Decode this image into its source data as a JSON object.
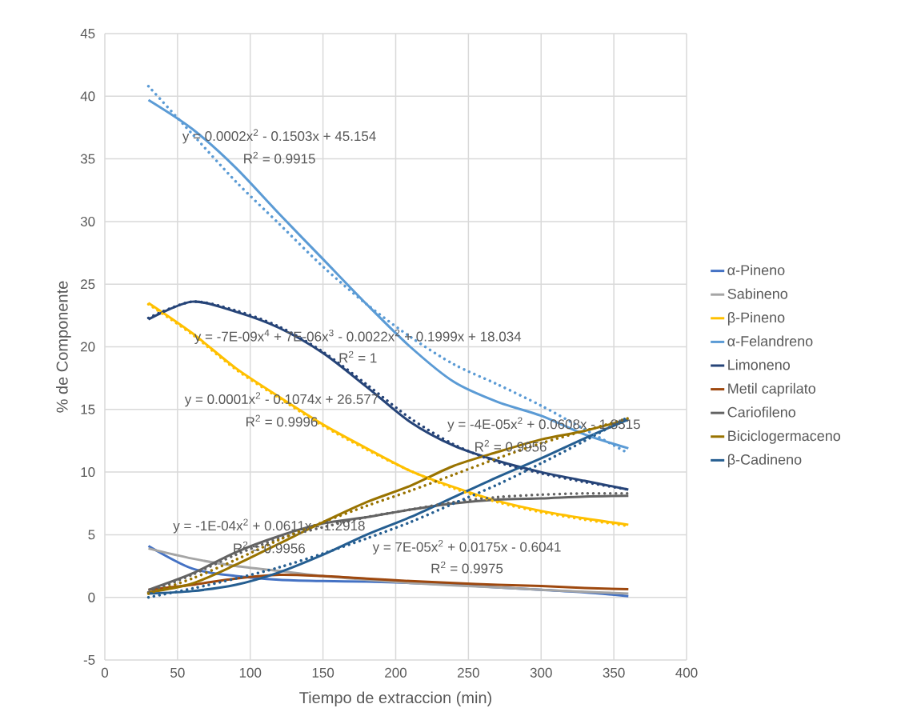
{
  "chart_data": {
    "type": "line",
    "xlabel": "Tiempo de extraccion (min)",
    "ylabel": "% de Componente",
    "x": [
      30,
      60,
      90,
      120,
      150,
      180,
      210,
      240,
      270,
      300,
      330,
      360
    ],
    "xlim": [
      0,
      400
    ],
    "xticks": [
      0,
      50,
      100,
      150,
      200,
      250,
      300,
      350,
      400
    ],
    "ylim": [
      -5,
      45
    ],
    "yticks": [
      -5,
      0,
      5,
      10,
      15,
      20,
      25,
      30,
      35,
      40,
      45
    ],
    "grid": true,
    "legend": "right",
    "marker": "none",
    "line_style": "solid",
    "series": [
      {
        "name": "α-Pineno",
        "color": "#4472c4",
        "values": [
          4.1,
          2.3,
          1.7,
          1.4,
          1.3,
          1.25,
          1.15,
          1.0,
          0.8,
          0.6,
          0.4,
          0.1
        ]
      },
      {
        "name": "Sabineno",
        "color": "#a5a5a5",
        "values": [
          3.9,
          3.1,
          2.5,
          2.1,
          1.7,
          1.4,
          1.15,
          0.95,
          0.8,
          0.6,
          0.45,
          0.3
        ]
      },
      {
        "name": "β-Pineno",
        "color": "#ffc000",
        "values": [
          23.5,
          21.1,
          18.3,
          16.0,
          13.8,
          11.9,
          10.1,
          8.8,
          7.7,
          6.9,
          6.3,
          5.8
        ]
      },
      {
        "name": "α-Felandreno",
        "color": "#5b9bd5",
        "values": [
          39.7,
          37.4,
          34.3,
          30.6,
          27.0,
          23.4,
          20.0,
          17.2,
          15.6,
          14.5,
          13.0,
          11.9
        ]
      },
      {
        "name": "Limoneno",
        "color": "#264478",
        "values": [
          22.2,
          23.6,
          22.8,
          21.5,
          19.5,
          16.8,
          14.0,
          12.1,
          10.9,
          10.0,
          9.3,
          8.6
        ]
      },
      {
        "name": "Metil caprilato",
        "color": "#9e480e",
        "values": [
          0.6,
          1.0,
          1.5,
          1.8,
          1.7,
          1.5,
          1.3,
          1.15,
          1.0,
          0.9,
          0.75,
          0.65
        ]
      },
      {
        "name": "Cariofileno",
        "color": "#636363",
        "values": [
          0.6,
          1.9,
          3.6,
          4.9,
          5.9,
          6.4,
          7.0,
          7.5,
          7.8,
          7.9,
          8.05,
          8.1
        ]
      },
      {
        "name": "Biciclogermaceno",
        "color": "#997300",
        "values": [
          0.4,
          1.1,
          2.6,
          4.3,
          6.0,
          7.6,
          8.9,
          10.5,
          11.6,
          12.6,
          13.3,
          14.2
        ]
      },
      {
        "name": "β-Cadineno",
        "color": "#255e91",
        "values": [
          0.3,
          0.5,
          1.0,
          2.0,
          3.4,
          5.0,
          6.4,
          8.0,
          9.6,
          11.1,
          12.7,
          14.2
        ]
      },
      {
        "type": "line",
        "line_style": "dotted",
        "color": "#5b9bd5",
        "x": [
          30,
          60,
          90,
          120,
          150,
          180,
          210,
          240,
          270,
          300,
          330,
          360
        ],
        "values": [
          40.8,
          37.0,
          33.2,
          29.8,
          26.4,
          23.4,
          20.8,
          18.6,
          17.0,
          15.3,
          13.4,
          11.5
        ]
      },
      {
        "type": "line",
        "line_style": "dotted",
        "color": "#264478",
        "x": [
          30,
          60,
          90,
          120,
          150,
          180,
          210,
          240,
          270,
          300,
          330,
          360
        ],
        "values": [
          22.3,
          23.6,
          22.9,
          21.6,
          19.6,
          17.0,
          14.3,
          12.2,
          10.8,
          9.9,
          9.2,
          8.6
        ]
      },
      {
        "type": "line",
        "line_style": "dotted",
        "color": "#ffc000",
        "x": [
          30,
          60,
          90,
          120,
          150,
          180,
          210,
          240,
          270,
          300,
          330,
          360
        ],
        "values": [
          23.4,
          21.0,
          18.2,
          15.9,
          13.7,
          11.8,
          10.1,
          8.7,
          7.6,
          6.8,
          6.2,
          5.7
        ]
      },
      {
        "type": "line",
        "line_style": "dotted",
        "color": "#636363",
        "x": [
          30,
          60,
          90,
          120,
          150,
          180,
          210,
          240,
          270,
          300,
          330,
          360
        ],
        "values": [
          0.4,
          1.8,
          3.4,
          4.7,
          5.6,
          6.4,
          7.0,
          7.6,
          8.0,
          8.2,
          8.3,
          8.3
        ]
      },
      {
        "type": "line",
        "line_style": "dotted",
        "color": "#997300",
        "x": [
          30,
          60,
          90,
          120,
          150,
          180,
          210,
          240,
          270,
          300,
          330,
          360
        ],
        "values": [
          0.3,
          1.5,
          3.0,
          4.6,
          6.0,
          7.3,
          8.5,
          9.8,
          11.1,
          12.3,
          13.3,
          14.3
        ]
      },
      {
        "type": "line",
        "line_style": "dotted",
        "color": "#255e91",
        "x": [
          30,
          60,
          90,
          120,
          150,
          180,
          210,
          240,
          270,
          300,
          330,
          360
        ],
        "values": [
          0.0,
          0.7,
          1.5,
          2.4,
          3.5,
          4.7,
          6.0,
          7.5,
          9.0,
          10.7,
          12.5,
          14.4
        ]
      }
    ],
    "annotations": [
      "y = 0.0002x$^{2}$ - 0.1503x + 45.154",
      "R$^{2}$ = 0.9915",
      "y = -7E-09x$^{4}$ + 7E-06x$^{3}$ - 0.0022x$^{2}$ + 0.1999x + 18.034",
      "R$^{2}$ = 1",
      "y = 0.0001x$^{2}$ - 0.1074x + 26.577",
      "R$^{2}$ = 0.9996",
      "y = -4E-05x$^{2}$ + 0.0608x - 1.8515",
      "R$^{2}$ = 0.9956",
      "y = -1E-04x$^{2}$ + 0.0611x - 1.2918",
      "R$^{2}$ = 0.9956",
      "y = 7E-05x$^{2}$ + 0.0175x - 0.6041",
      "R$^{2}$ = 0.9975"
    ]
  }
}
